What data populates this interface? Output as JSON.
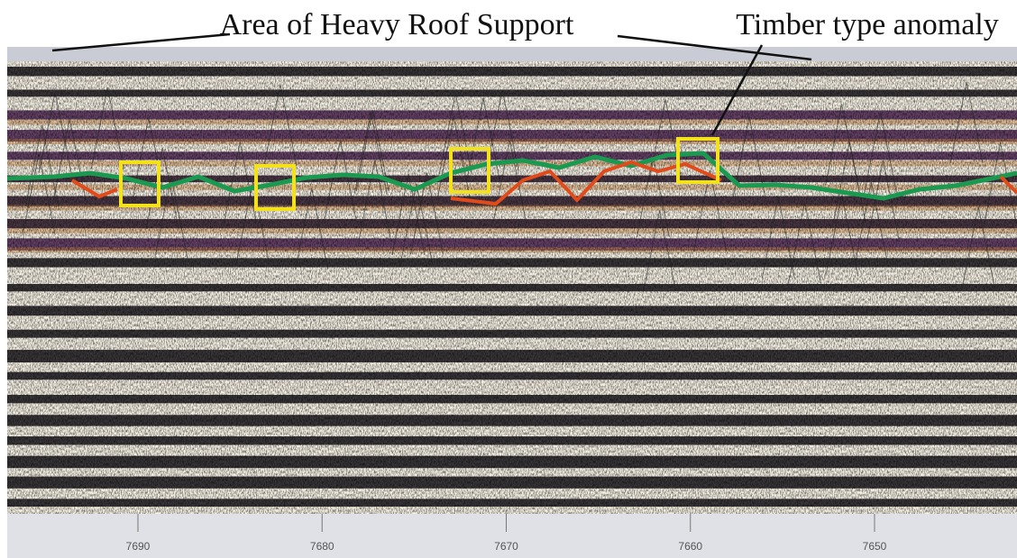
{
  "annotations": {
    "roof_support": "Area of Heavy Roof Support",
    "timber": "Timber type anomaly"
  },
  "axis": {
    "ticks": [
      7690,
      7680,
      7670,
      7660,
      7650
    ]
  }
}
